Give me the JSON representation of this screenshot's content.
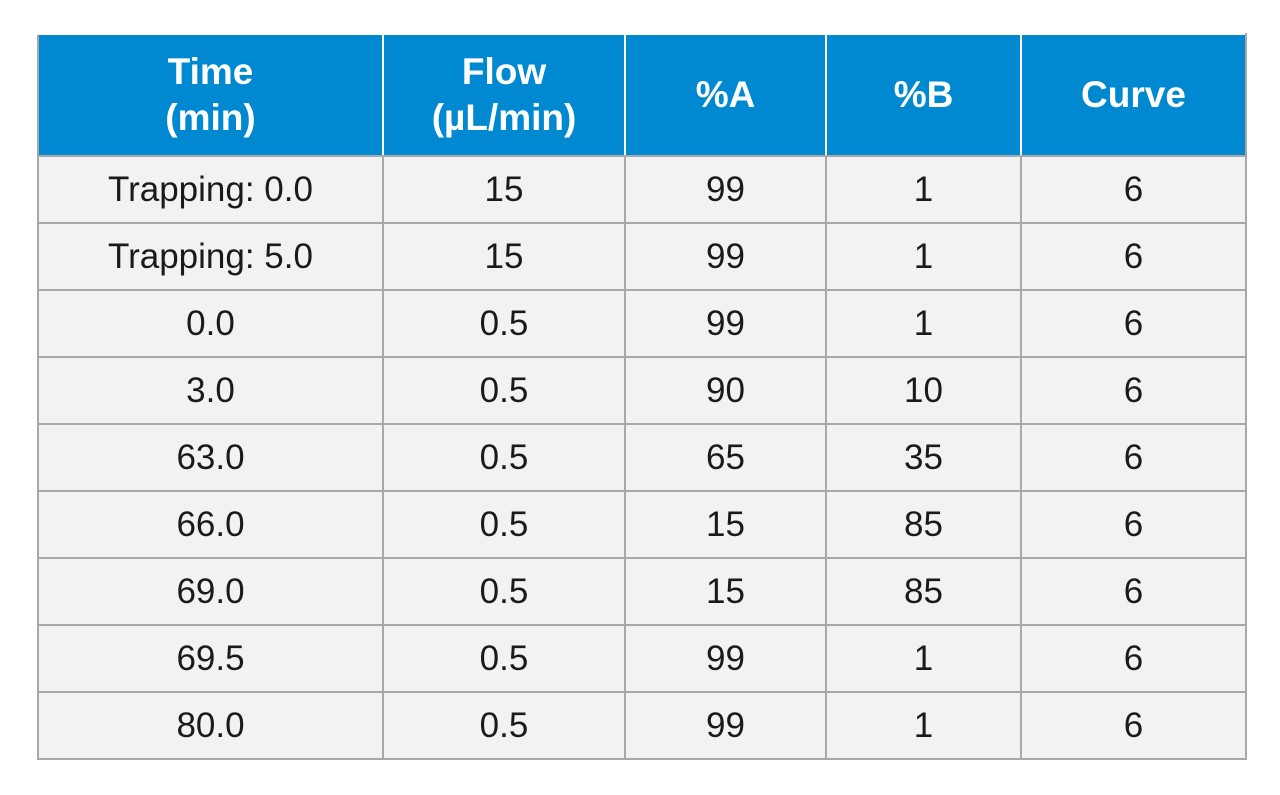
{
  "table": {
    "headers": [
      [
        "Time",
        "(min)"
      ],
      [
        "Flow",
        "(µL/min)"
      ],
      [
        "%A"
      ],
      [
        "%B"
      ],
      [
        "Curve"
      ]
    ],
    "rows": [
      [
        "Trapping: 0.0",
        "15",
        "99",
        "1",
        "6"
      ],
      [
        "Trapping: 5.0",
        "15",
        "99",
        "1",
        "6"
      ],
      [
        "0.0",
        "0.5",
        "99",
        "1",
        "6"
      ],
      [
        "3.0",
        "0.5",
        "90",
        "10",
        "6"
      ],
      [
        "63.0",
        "0.5",
        "65",
        "35",
        "6"
      ],
      [
        "66.0",
        "0.5",
        "15",
        "85",
        "6"
      ],
      [
        "69.0",
        "0.5",
        "15",
        "85",
        "6"
      ],
      [
        "69.5",
        "0.5",
        "99",
        "1",
        "6"
      ],
      [
        "80.0",
        "0.5",
        "99",
        "1",
        "6"
      ]
    ]
  },
  "colors": {
    "header_background": "#0089d0",
    "header_text": "#ffffff",
    "row_background": "#f2f2f4",
    "grid_line": "#a8a8a8"
  }
}
